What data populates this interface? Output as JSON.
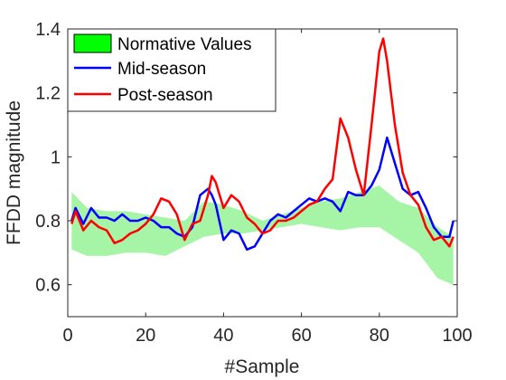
{
  "chart_data": {
    "type": "line",
    "xlabel": "#Sample",
    "ylabel": "FFDD magnitude",
    "xlim": [
      0,
      100
    ],
    "ylim": [
      0.5,
      1.4
    ],
    "xticks": [
      0,
      20,
      40,
      60,
      80,
      100
    ],
    "yticks": [
      0.6,
      0.8,
      1,
      1.2,
      1.4
    ],
    "ytick_labels": [
      "0.6",
      "0.8",
      "1",
      "1.2",
      "1.4"
    ],
    "grid": false,
    "legend_position": "top-left",
    "band": {
      "name": "Normative Values",
      "color": "#00ff00",
      "fill_color": "#a6f5a6",
      "x": [
        1,
        5,
        10,
        15,
        20,
        25,
        30,
        35,
        40,
        45,
        50,
        55,
        60,
        65,
        70,
        75,
        80,
        85,
        90,
        95,
        99
      ],
      "upper": [
        0.89,
        0.84,
        0.83,
        0.83,
        0.82,
        0.81,
        0.8,
        0.86,
        0.85,
        0.83,
        0.8,
        0.82,
        0.84,
        0.86,
        0.87,
        0.89,
        0.91,
        0.86,
        0.84,
        0.78,
        0.75
      ],
      "lower": [
        0.71,
        0.69,
        0.69,
        0.7,
        0.7,
        0.69,
        0.72,
        0.75,
        0.76,
        0.76,
        0.77,
        0.78,
        0.79,
        0.78,
        0.77,
        0.78,
        0.78,
        0.74,
        0.7,
        0.62,
        0.6
      ]
    },
    "series": [
      {
        "name": "Mid-season",
        "color": "#0000ff",
        "x": [
          1,
          2,
          4,
          6,
          8,
          10,
          12,
          14,
          16,
          18,
          20,
          22,
          24,
          26,
          28,
          30,
          32,
          34,
          36,
          37,
          38,
          40,
          42,
          44,
          46,
          48,
          50,
          52,
          54,
          56,
          58,
          60,
          62,
          64,
          66,
          68,
          70,
          72,
          74,
          76,
          78,
          80,
          82,
          84,
          86,
          88,
          90,
          92,
          94,
          96,
          98,
          99
        ],
        "y": [
          0.8,
          0.84,
          0.79,
          0.84,
          0.81,
          0.81,
          0.8,
          0.82,
          0.8,
          0.8,
          0.81,
          0.8,
          0.78,
          0.78,
          0.76,
          0.75,
          0.78,
          0.88,
          0.9,
          0.88,
          0.85,
          0.74,
          0.77,
          0.76,
          0.71,
          0.72,
          0.76,
          0.8,
          0.82,
          0.81,
          0.83,
          0.85,
          0.87,
          0.86,
          0.87,
          0.86,
          0.83,
          0.89,
          0.88,
          0.88,
          0.91,
          0.96,
          1.06,
          0.98,
          0.9,
          0.88,
          0.89,
          0.84,
          0.78,
          0.75,
          0.75,
          0.8
        ]
      },
      {
        "name": "Post-season",
        "color": "#ff0000",
        "x": [
          1,
          2,
          4,
          6,
          8,
          10,
          12,
          14,
          16,
          18,
          20,
          22,
          24,
          26,
          28,
          30,
          32,
          34,
          36,
          37,
          38,
          40,
          42,
          44,
          46,
          48,
          50,
          52,
          54,
          56,
          58,
          60,
          62,
          64,
          66,
          68,
          70,
          72,
          74,
          76,
          78,
          80,
          81,
          82,
          84,
          86,
          88,
          90,
          92,
          94,
          96,
          98,
          99
        ],
        "y": [
          0.79,
          0.83,
          0.77,
          0.8,
          0.78,
          0.77,
          0.73,
          0.74,
          0.76,
          0.77,
          0.79,
          0.82,
          0.87,
          0.86,
          0.82,
          0.74,
          0.79,
          0.8,
          0.88,
          0.94,
          0.92,
          0.84,
          0.88,
          0.86,
          0.81,
          0.79,
          0.76,
          0.77,
          0.8,
          0.8,
          0.81,
          0.83,
          0.85,
          0.86,
          0.9,
          0.93,
          1.12,
          1.06,
          0.96,
          0.88,
          1.1,
          1.33,
          1.37,
          1.3,
          1.1,
          0.95,
          0.88,
          0.85,
          0.78,
          0.74,
          0.75,
          0.72,
          0.75
        ]
      }
    ]
  }
}
